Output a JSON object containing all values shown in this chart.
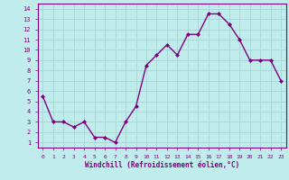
{
  "x": [
    0,
    1,
    2,
    3,
    4,
    5,
    6,
    7,
    8,
    9,
    10,
    11,
    12,
    13,
    14,
    15,
    16,
    17,
    18,
    19,
    20,
    21,
    22,
    23
  ],
  "y": [
    5.5,
    3.0,
    3.0,
    2.5,
    3.0,
    1.5,
    1.5,
    1.0,
    3.0,
    4.5,
    8.5,
    9.5,
    10.5,
    9.5,
    11.5,
    11.5,
    13.5,
    13.5,
    12.5,
    11.0,
    9.0,
    9.0,
    9.0,
    7.0
  ],
  "line_color": "#800080",
  "marker_color": "#800080",
  "bg_color": "#c0ecec",
  "grid_color": "#a8d8d8",
  "axis_color": "#800080",
  "tick_color": "#800080",
  "xlabel": "Windchill (Refroidissement éolien,°C)",
  "ylim_min": 1,
  "ylim_max": 14,
  "xlim_min": 0,
  "xlim_max": 23,
  "yticks": [
    1,
    2,
    3,
    4,
    5,
    6,
    7,
    8,
    9,
    10,
    11,
    12,
    13,
    14
  ],
  "xticks": [
    0,
    1,
    2,
    3,
    4,
    5,
    6,
    7,
    8,
    9,
    10,
    11,
    12,
    13,
    14,
    15,
    16,
    17,
    18,
    19,
    20,
    21,
    22,
    23
  ],
  "xlabel_fontsize": 5.5,
  "tick_fontsize": 5.0,
  "xtick_fontsize": 4.5,
  "linewidth": 1.0,
  "markersize": 2.0
}
